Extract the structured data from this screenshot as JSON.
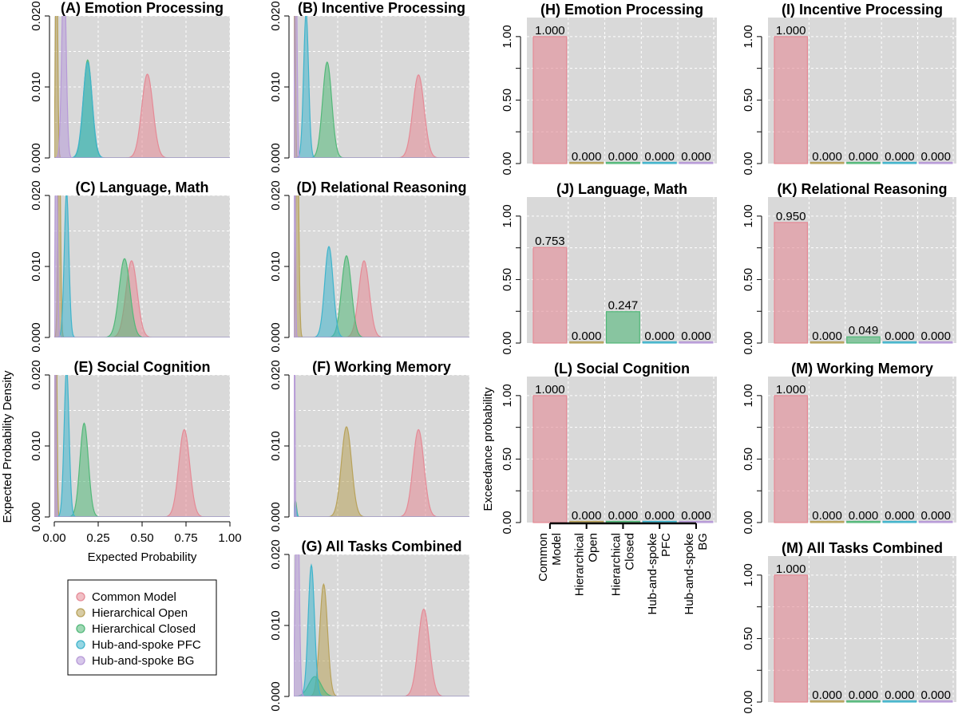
{
  "palette": {
    "panel_bg": "#d9d9d9",
    "grid": "#ffffff",
    "series_colors": [
      "#e58a96",
      "#b8a25a",
      "#52b879",
      "#3fb4cc",
      "#b79ad8"
    ]
  },
  "legend": {
    "placement": "below-panel-E",
    "entries": [
      "Common Model",
      "Hierarchical Open",
      "Hierarchical Closed",
      "Hub-and-spoke PFC",
      "Hub-and-spoke BG"
    ]
  },
  "density_axes": {
    "ylabel": "Expected Probability Density",
    "xlabel": "Expected Probability",
    "xticks": [
      "0.00",
      "0.25",
      "0.50",
      "0.75",
      "1.00"
    ],
    "yticks": [
      "0.000",
      "0.010",
      "0.020"
    ]
  },
  "bar_axes": {
    "ylabel": "Exceedance probability",
    "yticks": [
      "0.00",
      "0.50",
      "1.00"
    ],
    "category_lines": [
      [
        "Common",
        "Model"
      ],
      [
        "Hierarchical",
        "Open"
      ],
      [
        "Hierarchical",
        "Closed"
      ],
      [
        "Hub-and-spoke",
        "PFC"
      ],
      [
        "Hub-and-spoke",
        "BG"
      ]
    ]
  },
  "chart_data": [
    {
      "id": "A",
      "type": "area",
      "title": "(A) Emotion Processing",
      "xlim": [
        0,
        1
      ],
      "ylim": [
        0,
        0.02
      ],
      "series": [
        {
          "name": "Common Model",
          "mode": 0.53,
          "sd": 0.032,
          "peak": 0.0118
        },
        {
          "name": "Hierarchical Open",
          "mode": 0.013,
          "sd": 0.006,
          "peak": 0.033
        },
        {
          "name": "Hierarchical Closed",
          "mode": 0.19,
          "sd": 0.025,
          "peak": 0.0138
        },
        {
          "name": "Hub-and-spoke PFC",
          "mode": 0.19,
          "sd": 0.026,
          "peak": 0.0135
        },
        {
          "name": "Hub-and-spoke BG",
          "mode": 0.055,
          "sd": 0.012,
          "peak": 0.028
        }
      ]
    },
    {
      "id": "B",
      "type": "area",
      "title": "(B) Incentive Processing",
      "xlim": [
        0,
        1
      ],
      "ylim": [
        0,
        0.02
      ],
      "series": [
        {
          "name": "Common Model",
          "mode": 0.71,
          "sd": 0.032,
          "peak": 0.0117
        },
        {
          "name": "Hierarchical Open",
          "mode": 0.005,
          "sd": 0.004,
          "peak": 0.035
        },
        {
          "name": "Hierarchical Closed",
          "mode": 0.19,
          "sd": 0.026,
          "peak": 0.0135
        },
        {
          "name": "Hub-and-spoke PFC",
          "mode": 0.07,
          "sd": 0.014,
          "peak": 0.0205
        },
        {
          "name": "Hub-and-spoke BG",
          "mode": 0.012,
          "sd": 0.006,
          "peak": 0.033
        }
      ]
    },
    {
      "id": "C",
      "type": "area",
      "title": "(C) Language, Math",
      "xlim": [
        0,
        1
      ],
      "ylim": [
        0,
        0.02
      ],
      "series": [
        {
          "name": "Common Model",
          "mode": 0.44,
          "sd": 0.032,
          "peak": 0.0108
        },
        {
          "name": "Hierarchical Open",
          "mode": 0.028,
          "sd": 0.007,
          "peak": 0.032
        },
        {
          "name": "Hierarchical Closed",
          "mode": 0.4,
          "sd": 0.031,
          "peak": 0.0111
        },
        {
          "name": "Hub-and-spoke PFC",
          "mode": 0.07,
          "sd": 0.013,
          "peak": 0.0205
        },
        {
          "name": "Hub-and-spoke BG",
          "mode": 0.012,
          "sd": 0.006,
          "peak": 0.033
        }
      ]
    },
    {
      "id": "D",
      "type": "area",
      "title": "(D) Relational Reasoning",
      "xlim": [
        0,
        1
      ],
      "ylim": [
        0,
        0.02
      ],
      "series": [
        {
          "name": "Common Model",
          "mode": 0.4,
          "sd": 0.03,
          "peak": 0.0108
        },
        {
          "name": "Hierarchical Open",
          "mode": 0.02,
          "sd": 0.008,
          "peak": 0.032
        },
        {
          "name": "Hierarchical Closed",
          "mode": 0.3,
          "sd": 0.028,
          "peak": 0.0115
        },
        {
          "name": "Hub-and-spoke PFC",
          "mode": 0.2,
          "sd": 0.024,
          "peak": 0.0128
        },
        {
          "name": "Hub-and-spoke BG",
          "mode": 0.005,
          "sd": 0.004,
          "peak": 0.035
        }
      ]
    },
    {
      "id": "E",
      "type": "area",
      "title": "(E) Social Cognition",
      "xlim": [
        0,
        1
      ],
      "ylim": [
        0,
        0.02
      ],
      "series": [
        {
          "name": "Common Model",
          "mode": 0.74,
          "sd": 0.031,
          "peak": 0.0123
        },
        {
          "name": "Hierarchical Open",
          "mode": 0.01,
          "sd": 0.005,
          "peak": 0.034
        },
        {
          "name": "Hierarchical Closed",
          "mode": 0.17,
          "sd": 0.024,
          "peak": 0.0132
        },
        {
          "name": "Hub-and-spoke PFC",
          "mode": 0.07,
          "sd": 0.014,
          "peak": 0.021
        },
        {
          "name": "Hub-and-spoke BG",
          "mode": 0.005,
          "sd": 0.004,
          "peak": 0.035
        }
      ]
    },
    {
      "id": "F",
      "type": "area",
      "title": "(F) Working Memory",
      "xlim": [
        0,
        1
      ],
      "ylim": [
        0,
        0.02
      ],
      "series": [
        {
          "name": "Common Model",
          "mode": 0.71,
          "sd": 0.031,
          "peak": 0.0123
        },
        {
          "name": "Hierarchical Open",
          "mode": 0.3,
          "sd": 0.029,
          "peak": 0.0127
        },
        {
          "name": "Hierarchical Closed",
          "mode": 0.01,
          "sd": 0.006,
          "peak": 0.0023
        },
        {
          "name": "Hub-and-spoke PFC",
          "mode": 0.01,
          "sd": 0.006,
          "peak": 0.0015
        },
        {
          "name": "Hub-and-spoke BG",
          "mode": 0.003,
          "sd": 0.003,
          "peak": 0.04
        }
      ]
    },
    {
      "id": "G",
      "type": "area",
      "title": "(G) All Tasks Combined",
      "xlim": [
        0,
        1
      ],
      "ylim": [
        0,
        0.02
      ],
      "series": [
        {
          "name": "Common Model",
          "mode": 0.74,
          "sd": 0.032,
          "peak": 0.0123
        },
        {
          "name": "Hierarchical Open",
          "mode": 0.17,
          "sd": 0.022,
          "peak": 0.0158
        },
        {
          "name": "Hierarchical Closed",
          "mode": 0.12,
          "sd": 0.035,
          "peak": 0.0028
        },
        {
          "name": "Hub-and-spoke PFC",
          "mode": 0.1,
          "sd": 0.018,
          "peak": 0.0185
        },
        {
          "name": "Hub-and-spoke BG",
          "mode": 0.02,
          "sd": 0.01,
          "peak": 0.033
        }
      ]
    },
    {
      "id": "H",
      "type": "bar",
      "title": "(H) Emotion Processing",
      "ylim": [
        0,
        1.15
      ],
      "values": [
        1.0,
        0.0,
        0.0,
        0.0,
        0.0
      ],
      "labels": [
        "1.000",
        "0.000",
        "0.000",
        "0.000",
        "0.000"
      ]
    },
    {
      "id": "I",
      "type": "bar",
      "title": "(I) Incentive Processing",
      "ylim": [
        0,
        1.15
      ],
      "values": [
        1.0,
        0.0,
        0.0,
        0.0,
        0.0
      ],
      "labels": [
        "1.000",
        "0.000",
        "0.000",
        "0.000",
        "0.000"
      ]
    },
    {
      "id": "J",
      "type": "bar",
      "title": "(J) Language, Math",
      "ylim": [
        0,
        1.15
      ],
      "values": [
        0.753,
        0.0,
        0.247,
        0.0,
        0.0
      ],
      "labels": [
        "0.753",
        "0.000",
        "0.247",
        "0.000",
        "0.000"
      ]
    },
    {
      "id": "K",
      "type": "bar",
      "title": "(K) Relational Reasoning",
      "ylim": [
        0,
        1.15
      ],
      "values": [
        0.95,
        0.0,
        0.049,
        0.0,
        0.0
      ],
      "labels": [
        "0.950",
        "0.000",
        "0.049",
        "0.000",
        "0.000"
      ]
    },
    {
      "id": "L",
      "type": "bar",
      "title": "(L) Social Cognition",
      "ylim": [
        0,
        1.15
      ],
      "values": [
        1.0,
        0.0,
        0.0,
        0.0,
        0.0
      ],
      "labels": [
        "1.000",
        "0.000",
        "0.000",
        "0.000",
        "0.000"
      ]
    },
    {
      "id": "M1",
      "type": "bar",
      "title": "(M) Working Memory",
      "ylim": [
        0,
        1.15
      ],
      "values": [
        1.0,
        0.0,
        0.0,
        0.0,
        0.0
      ],
      "labels": [
        "1.000",
        "0.000",
        "0.000",
        "0.000",
        "0.000"
      ]
    },
    {
      "id": "M2",
      "type": "bar",
      "title": "(M) All Tasks Combined",
      "ylim": [
        0,
        1.15
      ],
      "values": [
        1.0,
        0.0,
        0.0,
        0.0,
        0.0
      ],
      "labels": [
        "1.000",
        "0.000",
        "0.000",
        "0.000",
        "0.000"
      ]
    }
  ]
}
